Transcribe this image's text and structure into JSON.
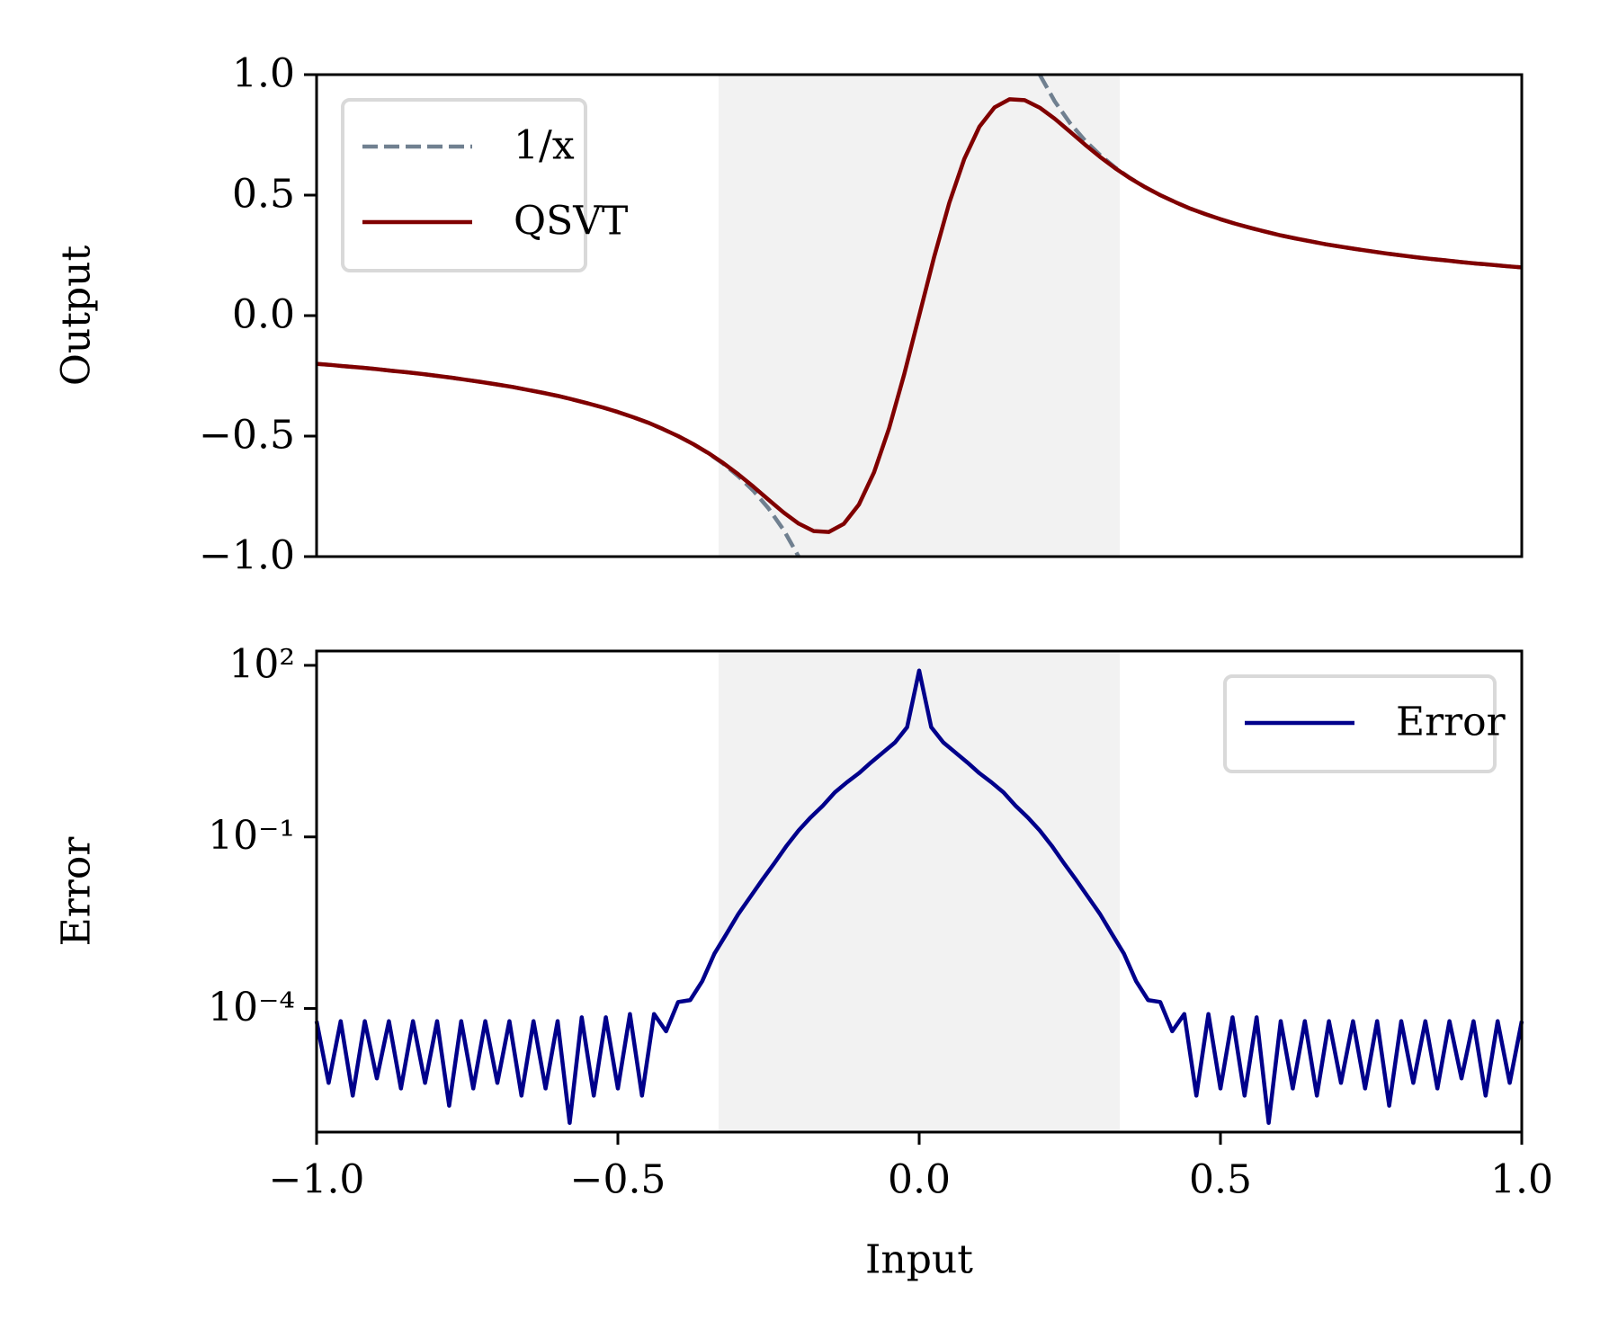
{
  "chart_data": [
    {
      "type": "line",
      "ylabel": "Output",
      "x": [
        -1,
        -0.975,
        -0.95,
        -0.925,
        -0.9,
        -0.875,
        -0.85,
        -0.825,
        -0.8,
        -0.775,
        -0.75,
        -0.725,
        -0.7,
        -0.675,
        -0.65,
        -0.625,
        -0.6,
        -0.575,
        -0.55,
        -0.525,
        -0.5,
        -0.475,
        -0.45,
        -0.425,
        -0.4,
        -0.375,
        -0.35,
        -0.325,
        -0.3,
        -0.275,
        -0.25,
        -0.225,
        -0.2,
        -0.175,
        -0.15,
        -0.125,
        -0.1,
        -0.075,
        -0.05,
        -0.025,
        0,
        0.025,
        0.05,
        0.075,
        0.1,
        0.125,
        0.15,
        0.175,
        0.2,
        0.225,
        0.25,
        0.275,
        0.3,
        0.325,
        0.35,
        0.375,
        0.4,
        0.425,
        0.45,
        0.475,
        0.5,
        0.525,
        0.55,
        0.575,
        0.6,
        0.625,
        0.65,
        0.675,
        0.7,
        0.725,
        0.75,
        0.775,
        0.8,
        0.825,
        0.85,
        0.875,
        0.9,
        0.925,
        0.95,
        0.975,
        1
      ],
      "series": [
        {
          "name": "1/x",
          "color": "#708090",
          "linestyle": "dashed",
          "values": [
            -0.2,
            -0.205,
            -0.211,
            -0.216,
            -0.222,
            -0.229,
            -0.235,
            -0.242,
            -0.25,
            -0.258,
            -0.267,
            -0.276,
            -0.286,
            -0.296,
            -0.308,
            -0.32,
            -0.333,
            -0.348,
            -0.364,
            -0.381,
            -0.4,
            -0.421,
            -0.444,
            -0.471,
            -0.5,
            -0.533,
            -0.571,
            -0.615,
            -0.667,
            -0.727,
            -0.8,
            -0.889,
            -1.0,
            null,
            null,
            null,
            null,
            null,
            null,
            null,
            null,
            null,
            null,
            null,
            null,
            null,
            null,
            null,
            1.0,
            0.889,
            0.8,
            0.727,
            0.667,
            0.615,
            0.571,
            0.533,
            0.5,
            0.471,
            0.444,
            0.421,
            0.4,
            0.381,
            0.364,
            0.348,
            0.333,
            0.32,
            0.308,
            0.296,
            0.286,
            0.276,
            0.267,
            0.258,
            0.25,
            0.242,
            0.235,
            0.229,
            0.222,
            0.216,
            0.211,
            0.205,
            0.2
          ]
        },
        {
          "name": "QSVT",
          "color": "#800000",
          "linestyle": "solid",
          "values": [
            -0.2,
            -0.205,
            -0.211,
            -0.216,
            -0.222,
            -0.229,
            -0.235,
            -0.242,
            -0.25,
            -0.258,
            -0.267,
            -0.276,
            -0.286,
            -0.296,
            -0.308,
            -0.32,
            -0.333,
            -0.348,
            -0.364,
            -0.381,
            -0.4,
            -0.421,
            -0.444,
            -0.471,
            -0.5,
            -0.533,
            -0.57,
            -0.612,
            -0.659,
            -0.71,
            -0.764,
            -0.817,
            -0.863,
            -0.894,
            -0.898,
            -0.864,
            -0.784,
            -0.651,
            -0.468,
            -0.245,
            0,
            0.245,
            0.468,
            0.651,
            0.784,
            0.864,
            0.898,
            0.894,
            0.863,
            0.817,
            0.764,
            0.71,
            0.659,
            0.612,
            0.57,
            0.533,
            0.5,
            0.471,
            0.444,
            0.421,
            0.4,
            0.381,
            0.364,
            0.348,
            0.333,
            0.32,
            0.308,
            0.296,
            0.286,
            0.276,
            0.267,
            0.258,
            0.25,
            0.242,
            0.235,
            0.229,
            0.222,
            0.216,
            0.211,
            0.205,
            0.2
          ]
        }
      ],
      "xlim": [
        -1,
        1
      ],
      "ylim": [
        -1,
        1
      ],
      "yticks": [
        {
          "value": -1,
          "label": "−1.0"
        },
        {
          "value": -0.5,
          "label": "−0.5"
        },
        {
          "value": 0,
          "label": "0.0"
        },
        0.5,
        {
          "value": 1,
          "label": "1.0"
        }
      ],
      "shaded_region": [
        -0.333,
        0.333
      ],
      "shade_color": "#f2f2f2",
      "legend": "upper left"
    },
    {
      "type": "line",
      "ylabel": "Error",
      "xlabel": "Input",
      "yscale": "log",
      "x": [
        -1,
        -0.98,
        -0.96,
        -0.94,
        -0.92,
        -0.9,
        -0.88,
        -0.86,
        -0.84,
        -0.82,
        -0.8,
        -0.78,
        -0.76,
        -0.74,
        -0.72,
        -0.7,
        -0.68,
        -0.66,
        -0.64,
        -0.62,
        -0.6,
        -0.58,
        -0.56,
        -0.54,
        -0.52,
        -0.5,
        -0.48,
        -0.46,
        -0.44,
        -0.42,
        -0.4,
        -0.38,
        -0.36,
        -0.34,
        -0.32,
        -0.3,
        -0.28,
        -0.26,
        -0.24,
        -0.22,
        -0.2,
        -0.18,
        -0.16,
        -0.14,
        -0.12,
        -0.1,
        -0.08,
        -0.06,
        -0.04,
        -0.02,
        0,
        0.02,
        0.04,
        0.06,
        0.08,
        0.1,
        0.12,
        0.14,
        0.16,
        0.18,
        0.2,
        0.22,
        0.24,
        0.26,
        0.28,
        0.3,
        0.32,
        0.34,
        0.36,
        0.38,
        0.4,
        0.42,
        0.44,
        0.46,
        0.48,
        0.5,
        0.52,
        0.54,
        0.56,
        0.58,
        0.6,
        0.62,
        0.64,
        0.66,
        0.68,
        0.7,
        0.72,
        0.74,
        0.76,
        0.78,
        0.8,
        0.82,
        0.84,
        0.86,
        0.88,
        0.9,
        0.92,
        0.94,
        0.96,
        0.98,
        1
      ],
      "series": [
        {
          "name": "Error",
          "color": "#00008b",
          "linestyle": "solid",
          "values": [
            6e-05,
            5e-06,
            6e-05,
            3e-06,
            6e-05,
            6e-06,
            6e-05,
            4e-06,
            6e-05,
            5e-06,
            6e-05,
            2e-06,
            6e-05,
            4e-06,
            6e-05,
            5e-06,
            6e-05,
            3e-06,
            6e-05,
            4e-06,
            6e-05,
            1e-06,
            7e-05,
            3e-06,
            7e-05,
            4e-06,
            8e-05,
            3e-06,
            8e-05,
            4e-05,
            0.00013,
            0.00014,
            0.0003,
            0.0009,
            0.002,
            0.0045,
            0.009,
            0.018,
            0.035,
            0.07,
            0.13,
            0.22,
            0.35,
            0.6,
            0.9,
            1.3,
            2.0,
            3.0,
            4.5,
            8.3,
            81,
            8.3,
            4.5,
            3.0,
            2.0,
            1.3,
            0.9,
            0.6,
            0.35,
            0.22,
            0.13,
            0.07,
            0.035,
            0.018,
            0.009,
            0.0045,
            0.002,
            0.0009,
            0.0003,
            0.00014,
            0.00013,
            4e-05,
            8e-05,
            3e-06,
            8e-05,
            4e-06,
            7e-05,
            3e-06,
            7e-05,
            1e-06,
            6e-05,
            4e-06,
            6e-05,
            3e-06,
            6e-05,
            5e-06,
            6e-05,
            4e-06,
            6e-05,
            2e-06,
            6e-05,
            5e-06,
            6e-05,
            4e-06,
            6e-05,
            6e-06,
            6e-05,
            3e-06,
            6e-05,
            5e-06,
            6e-05
          ]
        }
      ],
      "xlim": [
        -1,
        1
      ],
      "ylim": [
        6.9e-07,
        178
      ],
      "xticks": [
        {
          "value": -1,
          "label": "−1.0"
        },
        {
          "value": -0.5,
          "label": "−0.5"
        },
        {
          "value": 0,
          "label": "0.0"
        },
        0.5,
        {
          "value": 1,
          "label": "1.0"
        }
      ],
      "yticks": [
        {
          "value": 100,
          "label": "10²"
        },
        {
          "value": 0.1,
          "label": "10⁻¹"
        },
        {
          "value": 0.0001,
          "label": "10⁻⁴"
        }
      ],
      "shaded_region": [
        -0.333,
        0.333
      ],
      "shade_color": "#f2f2f2",
      "legend": "upper right"
    }
  ]
}
